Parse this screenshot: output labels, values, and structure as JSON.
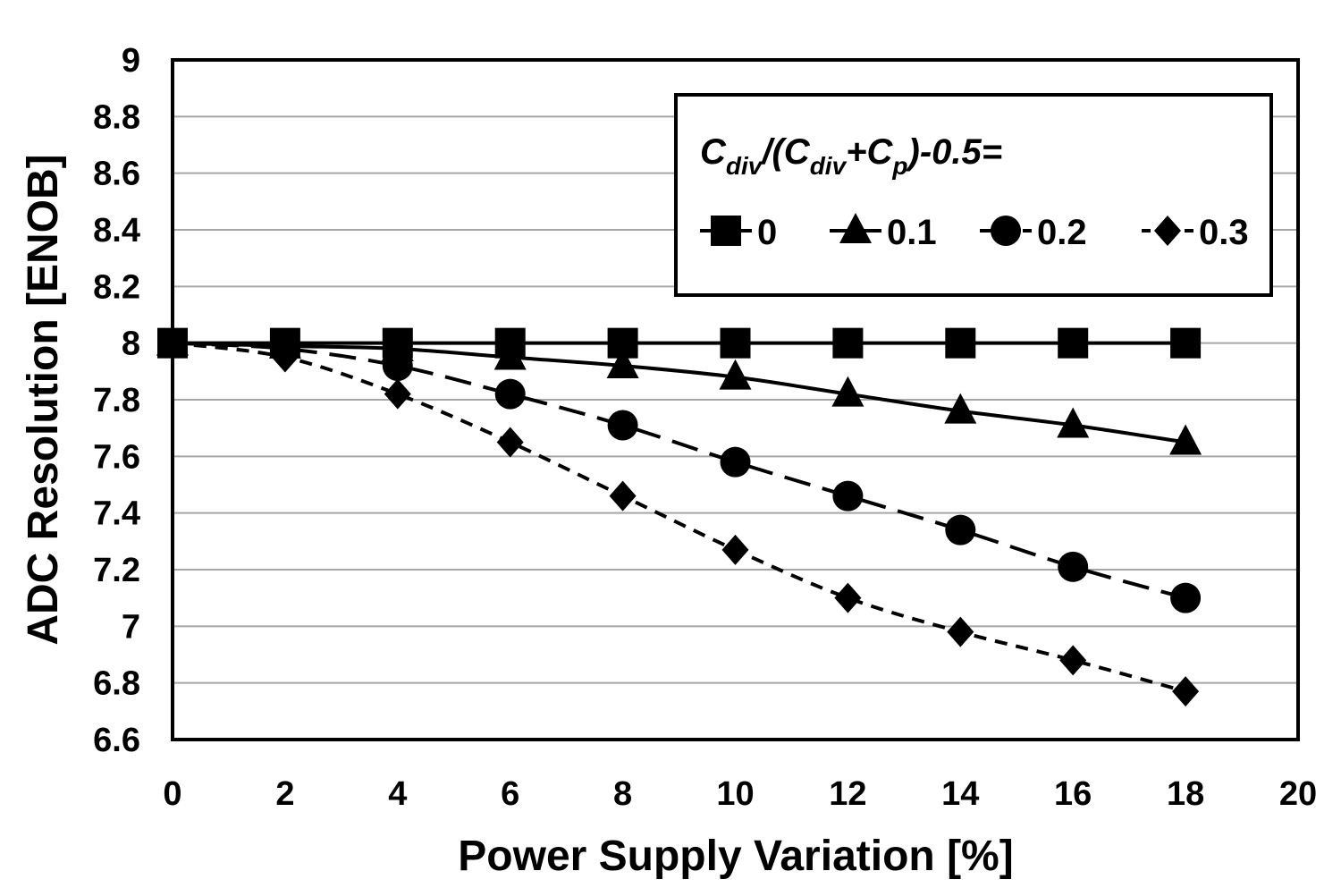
{
  "chart_data": {
    "type": "line",
    "title": "",
    "xlabel": "Power Supply Variation [%]",
    "ylabel": "ADC Resolution [ENOB]",
    "xlim": [
      0,
      20
    ],
    "ylim": [
      6.6,
      9
    ],
    "xticks": [
      0,
      2,
      4,
      6,
      8,
      10,
      12,
      14,
      16,
      18,
      20
    ],
    "yticks": [
      6.6,
      6.8,
      7,
      7.2,
      7.4,
      7.6,
      7.8,
      8,
      8.2,
      8.4,
      8.6,
      8.8,
      9
    ],
    "grid": "horizontal",
    "legend_position": "top-right",
    "legend_title": {
      "c1": "C",
      "s1": "div",
      "mid": "/(C",
      "s2": "div",
      "plus": "+C",
      "s3": "p",
      "tail": ")-0.5="
    },
    "x": [
      0,
      2,
      4,
      6,
      8,
      10,
      12,
      14,
      16,
      18
    ],
    "series": [
      {
        "name": "0",
        "marker": "square",
        "dash": "solid",
        "values": [
          8.0,
          8.0,
          8.0,
          8.0,
          8.0,
          8.0,
          8.0,
          8.0,
          8.0,
          8.0
        ]
      },
      {
        "name": "0.1",
        "marker": "triangle",
        "dash": "solid",
        "values": [
          8.0,
          7.99,
          7.98,
          7.95,
          7.92,
          7.88,
          7.82,
          7.76,
          7.71,
          7.65
        ]
      },
      {
        "name": "0.2",
        "marker": "circle",
        "dash": "long-dash",
        "values": [
          8.0,
          7.98,
          7.92,
          7.82,
          7.71,
          7.58,
          7.46,
          7.34,
          7.21,
          7.1
        ]
      },
      {
        "name": "0.3",
        "marker": "diamond",
        "dash": "short-dash",
        "values": [
          8.0,
          7.95,
          7.82,
          7.65,
          7.46,
          7.27,
          7.1,
          6.98,
          6.88,
          6.77
        ]
      }
    ],
    "colors": {
      "line": "#000000",
      "grid": "#a6a6a6",
      "background": "#ffffff"
    }
  }
}
